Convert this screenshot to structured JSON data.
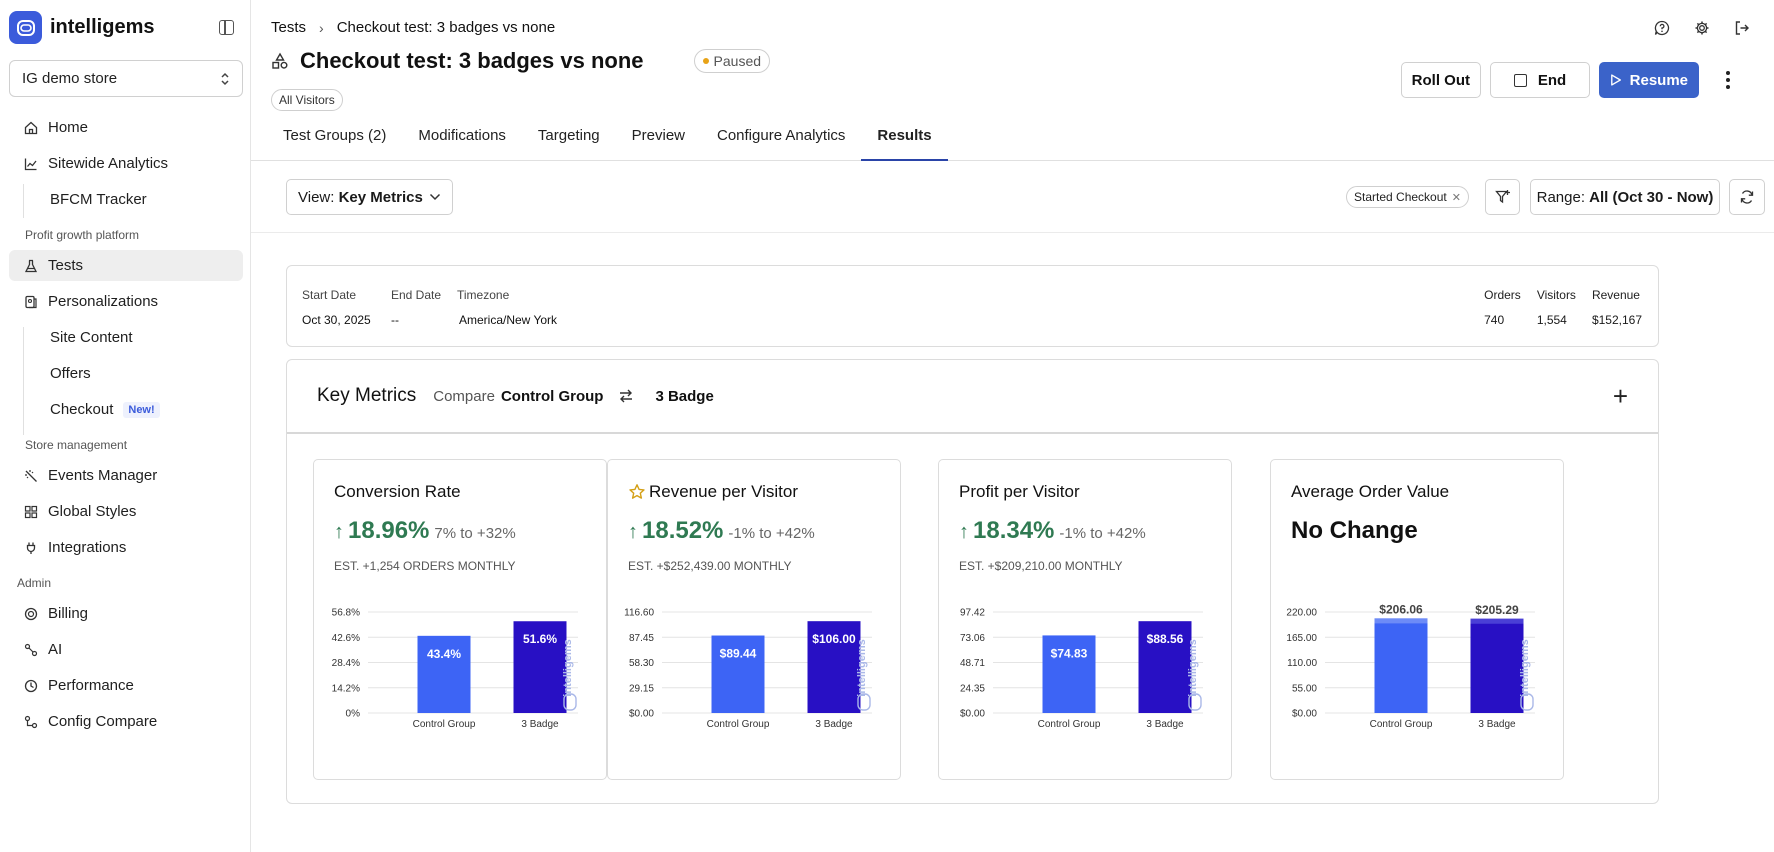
{
  "brand": {
    "name": "intelligems"
  },
  "sidebar": {
    "store": "IG demo store",
    "items": [
      {
        "label": "Home",
        "icon": "home-icon"
      },
      {
        "label": "Sitewide Analytics",
        "icon": "analytics-icon"
      },
      {
        "label": "BFCM Tracker"
      },
      {
        "section": "Profit growth platform"
      },
      {
        "label": "Tests",
        "icon": "flask-icon"
      },
      {
        "label": "Personalizations",
        "icon": "personalization-icon"
      },
      {
        "label": "Site Content"
      },
      {
        "label": "Offers"
      },
      {
        "label": "Checkout",
        "badge": "New!"
      },
      {
        "section": "Store management"
      },
      {
        "label": "Events Manager",
        "icon": "sparkle-icon"
      },
      {
        "label": "Global Styles",
        "icon": "grid-icon"
      },
      {
        "label": "Integrations",
        "icon": "plug-icon"
      },
      {
        "section": "Admin"
      },
      {
        "label": "Billing",
        "icon": "billing-icon"
      },
      {
        "label": "AI",
        "icon": "ai-icon"
      },
      {
        "label": "Performance",
        "icon": "performance-icon"
      },
      {
        "label": "Config Compare",
        "icon": "compare-icon"
      }
    ]
  },
  "header": {
    "breadcrumb_root": "Tests",
    "breadcrumb_current": "Checkout test: 3 badges vs none",
    "title": "Checkout test: 3 badges vs none",
    "status": "Paused",
    "audience": "All Visitors",
    "roll_out": "Roll Out",
    "end": "End",
    "resume": "Resume"
  },
  "tabs": [
    "Test Groups (2)",
    "Modifications",
    "Targeting",
    "Preview",
    "Configure Analytics",
    "Results"
  ],
  "toolbar": {
    "view_label": "View:",
    "view_value": "Key Metrics",
    "filter_chip": "Started Checkout",
    "range_label": "Range:",
    "range_value": "All (Oct 30 - Now)"
  },
  "info": {
    "start_label": "Start Date",
    "start_value": "Oct 30, 2025",
    "end_label": "End Date",
    "end_value": "--",
    "tz_label": "Timezone",
    "tz_value": "America/New York",
    "orders_label": "Orders",
    "orders_value": "740",
    "visitors_label": "Visitors",
    "visitors_value": "1,554",
    "revenue_label": "Revenue",
    "revenue_value": "$152,167"
  },
  "key_metrics": {
    "title": "Key Metrics",
    "compare_label": "Compare",
    "group_a": "Control Group",
    "group_b": "3 Badge",
    "watermark": "intelligems"
  },
  "colors": {
    "control": "#3d64f5",
    "variant": "#2810c4",
    "positive": "#2f7a52",
    "brand": "#3b5bdb"
  },
  "metrics": [
    {
      "title": "Conversion Rate",
      "value": "18.96%",
      "range": "7% to +32%",
      "est": "EST. +1,254 ORDERS MONTHLY"
    },
    {
      "title": "Revenue per Visitor",
      "starred": true,
      "value": "18.52%",
      "range": "-1% to +42%",
      "est": "EST. +$252,439.00 MONTHLY"
    },
    {
      "title": "Profit per Visitor",
      "value": "18.34%",
      "range": "-1% to +42%",
      "est": "EST. +$209,210.00 MONTHLY"
    },
    {
      "title": "Average Order Value",
      "nochange": "No Change"
    }
  ],
  "chart_data": [
    {
      "type": "bar",
      "title": "Conversion Rate",
      "categories": [
        "Control Group",
        "3 Badge"
      ],
      "values": [
        43.4,
        51.6
      ],
      "labels": [
        "43.4%",
        "51.6%"
      ],
      "yticks": [
        "0%",
        "14.2%",
        "28.4%",
        "42.6%",
        "56.8%"
      ],
      "ylim": [
        0,
        56.8
      ]
    },
    {
      "type": "bar",
      "title": "Revenue per Visitor",
      "categories": [
        "Control Group",
        "3 Badge"
      ],
      "values": [
        89.44,
        106.0
      ],
      "labels": [
        "$89.44",
        "$106.00"
      ],
      "yticks": [
        "$0.00",
        "29.15",
        "58.30",
        "87.45",
        "116.60"
      ],
      "ylim": [
        0,
        116.6
      ]
    },
    {
      "type": "bar",
      "title": "Profit per Visitor",
      "categories": [
        "Control Group",
        "3 Badge"
      ],
      "values": [
        74.83,
        88.56
      ],
      "labels": [
        "$74.83",
        "$88.56"
      ],
      "yticks": [
        "$0.00",
        "24.35",
        "48.71",
        "73.06",
        "97.42"
      ],
      "ylim": [
        0,
        97.42
      ]
    },
    {
      "type": "bar",
      "title": "Average Order Value",
      "categories": [
        "Control Group",
        "3 Badge"
      ],
      "values": [
        206.06,
        205.29
      ],
      "labels": [
        "$206.06",
        "$205.29"
      ],
      "yticks": [
        "$0.00",
        "55.00",
        "110.00",
        "165.00",
        "220.00"
      ],
      "ylim": [
        0,
        220
      ],
      "labels_above": true
    }
  ]
}
